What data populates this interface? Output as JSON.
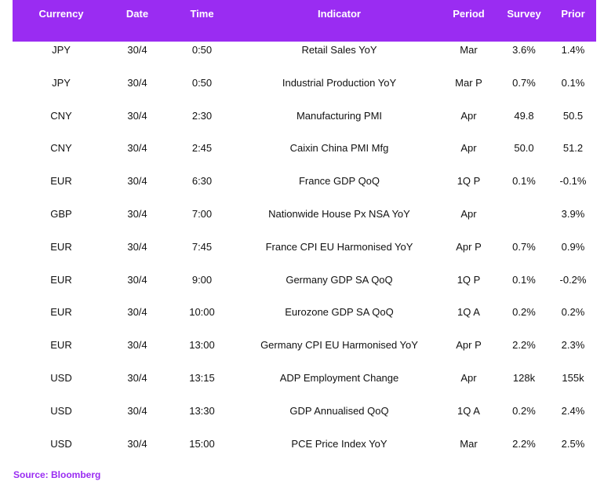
{
  "table": {
    "headers": [
      "Currency",
      "Date",
      "Time",
      "Indicator",
      "Period",
      "Survey",
      "Prior"
    ],
    "rows": [
      [
        "JPY",
        "30/4",
        "0:50",
        "Retail Sales YoY",
        "Mar",
        "3.6%",
        "1.4%"
      ],
      [
        "JPY",
        "30/4",
        "0:50",
        "Industrial Production YoY",
        "Mar P",
        "0.7%",
        "0.1%"
      ],
      [
        "CNY",
        "30/4",
        "2:30",
        "Manufacturing PMI",
        "Apr",
        "49.8",
        "50.5"
      ],
      [
        "CNY",
        "30/4",
        "2:45",
        "Caixin China PMI Mfg",
        "Apr",
        "50.0",
        "51.2"
      ],
      [
        "EUR",
        "30/4",
        "6:30",
        "France GDP QoQ",
        "1Q P",
        "0.1%",
        "-0.1%"
      ],
      [
        "GBP",
        "30/4",
        "7:00",
        "Nationwide House Px NSA YoY",
        "Apr",
        "",
        "3.9%"
      ],
      [
        "EUR",
        "30/4",
        "7:45",
        "France CPI EU Harmonised YoY",
        "Apr P",
        "0.7%",
        "0.9%"
      ],
      [
        "EUR",
        "30/4",
        "9:00",
        "Germany GDP SA QoQ",
        "1Q P",
        "0.1%",
        "-0.2%"
      ],
      [
        "EUR",
        "30/4",
        "10:00",
        "Eurozone GDP SA QoQ",
        "1Q A",
        "0.2%",
        "0.2%"
      ],
      [
        "EUR",
        "30/4",
        "13:00",
        "Germany CPI EU Harmonised YoY",
        "Apr P",
        "2.2%",
        "2.3%"
      ],
      [
        "USD",
        "30/4",
        "13:15",
        "ADP Employment Change",
        "Apr",
        "128k",
        "155k"
      ],
      [
        "USD",
        "30/4",
        "13:30",
        "GDP Annualised QoQ",
        "1Q A",
        "0.2%",
        "2.4%"
      ],
      [
        "USD",
        "30/4",
        "15:00",
        "PCE Price Index YoY",
        "Mar",
        "2.2%",
        "2.5%"
      ]
    ]
  },
  "source": "Source: Bloomberg",
  "colors": {
    "header_bg": "#9a2cf2",
    "header_text": "#ffffff",
    "source_text": "#9a2cf2"
  }
}
